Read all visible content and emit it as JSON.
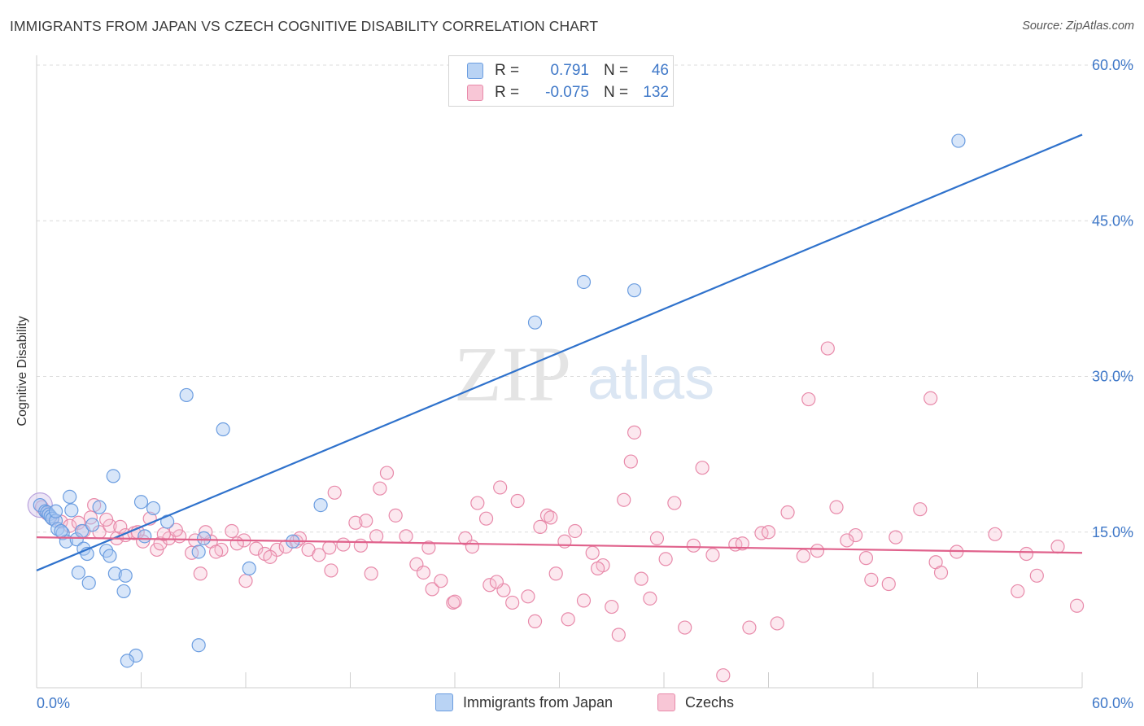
{
  "title": "IMMIGRANTS FROM JAPAN VS CZECH COGNITIVE DISABILITY CORRELATION CHART",
  "source": "Source: ZipAtlas.com",
  "watermark": {
    "zip": "ZIP",
    "atlas": "atlas"
  },
  "legend": {
    "rows": [
      {
        "r_label": "R =",
        "r_value": "0.791",
        "n_label": "N =",
        "n_value": "46",
        "color": "#a9c8f2",
        "border": "#6b9de0"
      },
      {
        "r_label": "R =",
        "r_value": "-0.075",
        "n_label": "N =",
        "n_value": "132",
        "color": "#f7bcd0",
        "border": "#e88aaa"
      }
    ]
  },
  "bottom_legend": [
    {
      "label": "Immigrants from Japan",
      "color": "#b9d3f4",
      "border": "#6b9de0"
    },
    {
      "label": "Czechs",
      "color": "#f8c6d6",
      "border": "#e88aaa"
    }
  ],
  "chart_data": {
    "type": "scatter",
    "title": "IMMIGRANTS FROM JAPAN VS CZECH COGNITIVE DISABILITY CORRELATION CHART",
    "xlabel": "",
    "ylabel": "Cognitive Disability",
    "xlim": [
      0,
      60
    ],
    "ylim": [
      0,
      60
    ],
    "x_tick_labels": [
      "0.0%",
      "60.0%"
    ],
    "y_tick_values": [
      15,
      30,
      45,
      60
    ],
    "y_tick_labels": [
      "15.0%",
      "30.0%",
      "45.0%",
      "60.0%"
    ],
    "grid": true,
    "series": [
      {
        "name": "Immigrants from Japan",
        "color": "#6b9de0",
        "fill": "rgba(168,200,242,0.45)",
        "trend_color": "#2f72cc",
        "trend": {
          "x": [
            0,
            60
          ],
          "y": [
            11.3,
            53.3
          ]
        },
        "points": [
          [
            0.2,
            17.6
          ],
          [
            0.5,
            17.0
          ],
          [
            0.6,
            16.9
          ],
          [
            0.7,
            16.7
          ],
          [
            0.8,
            16.5
          ],
          [
            0.9,
            16.3
          ],
          [
            1.1,
            16.1
          ],
          [
            1.2,
            15.3
          ],
          [
            1.5,
            14.9
          ],
          [
            1.7,
            14.1
          ],
          [
            1.4,
            15.1
          ],
          [
            2.0,
            17.1
          ],
          [
            2.3,
            14.3
          ],
          [
            2.7,
            13.4
          ],
          [
            1.9,
            18.4
          ],
          [
            2.6,
            15.1
          ],
          [
            2.9,
            12.9
          ],
          [
            4.0,
            13.2
          ],
          [
            3.0,
            10.1
          ],
          [
            3.6,
            17.4
          ],
          [
            4.2,
            12.7
          ],
          [
            4.5,
            11.0
          ],
          [
            4.4,
            20.4
          ],
          [
            5.0,
            9.3
          ],
          [
            5.1,
            10.8
          ],
          [
            6.7,
            17.3
          ],
          [
            6.2,
            14.6
          ],
          [
            6.0,
            17.9
          ],
          [
            5.7,
            3.1
          ],
          [
            5.2,
            2.6
          ],
          [
            8.6,
            28.2
          ],
          [
            7.5,
            16.0
          ],
          [
            9.3,
            13.1
          ],
          [
            9.6,
            14.4
          ],
          [
            10.7,
            24.9
          ],
          [
            12.2,
            11.5
          ],
          [
            14.7,
            14.1
          ],
          [
            16.3,
            17.6
          ],
          [
            9.3,
            4.1
          ],
          [
            2.4,
            11.1
          ],
          [
            3.2,
            15.7
          ],
          [
            28.6,
            35.2
          ],
          [
            31.4,
            39.1
          ],
          [
            34.3,
            38.3
          ],
          [
            52.9,
            52.7
          ],
          [
            1.1,
            17.0
          ]
        ]
      },
      {
        "name": "Czechs",
        "color": "#e88aaa",
        "fill": "rgba(247,188,208,0.35)",
        "trend_color": "#e0628c",
        "trend": {
          "x": [
            0,
            60
          ],
          "y": [
            14.5,
            13.0
          ]
        },
        "points": [
          [
            0.3,
            17.4
          ],
          [
            0.6,
            16.8
          ],
          [
            0.9,
            16.3
          ],
          [
            1.4,
            16.0
          ],
          [
            1.9,
            15.6
          ],
          [
            2.4,
            15.9
          ],
          [
            2.7,
            15.1
          ],
          [
            3.1,
            16.4
          ],
          [
            3.6,
            15.0
          ],
          [
            4.2,
            15.6
          ],
          [
            4.6,
            14.4
          ],
          [
            4.8,
            15.5
          ],
          [
            5.1,
            14.7
          ],
          [
            5.6,
            14.9
          ],
          [
            6.1,
            14.1
          ],
          [
            6.9,
            13.3
          ],
          [
            7.1,
            13.9
          ],
          [
            7.6,
            14.4
          ],
          [
            8.2,
            14.6
          ],
          [
            8.9,
            13.0
          ],
          [
            9.4,
            11.0
          ],
          [
            10.0,
            14.1
          ],
          [
            10.6,
            13.3
          ],
          [
            11.2,
            15.1
          ],
          [
            11.9,
            14.2
          ],
          [
            12.6,
            13.4
          ],
          [
            13.1,
            12.9
          ],
          [
            13.8,
            13.3
          ],
          [
            14.3,
            13.6
          ],
          [
            14.9,
            14.1
          ],
          [
            15.6,
            13.3
          ],
          [
            16.2,
            12.8
          ],
          [
            16.9,
            11.3
          ],
          [
            17.6,
            13.8
          ],
          [
            18.3,
            15.9
          ],
          [
            18.6,
            13.7
          ],
          [
            19.2,
            11.0
          ],
          [
            19.7,
            19.2
          ],
          [
            20.1,
            20.7
          ],
          [
            20.6,
            16.6
          ],
          [
            21.2,
            14.6
          ],
          [
            21.8,
            11.9
          ],
          [
            22.2,
            11.1
          ],
          [
            22.7,
            9.5
          ],
          [
            23.2,
            10.3
          ],
          [
            23.9,
            8.2
          ],
          [
            24.6,
            14.4
          ],
          [
            25.3,
            17.8
          ],
          [
            25.8,
            16.3
          ],
          [
            26.6,
            19.3
          ],
          [
            26.0,
            9.9
          ],
          [
            26.8,
            9.4
          ],
          [
            27.3,
            8.2
          ],
          [
            27.6,
            18.0
          ],
          [
            28.2,
            8.8
          ],
          [
            28.6,
            6.4
          ],
          [
            28.9,
            15.5
          ],
          [
            29.3,
            16.6
          ],
          [
            29.8,
            11.0
          ],
          [
            30.5,
            6.6
          ],
          [
            30.9,
            15.1
          ],
          [
            31.4,
            8.4
          ],
          [
            31.9,
            13.0
          ],
          [
            32.5,
            11.8
          ],
          [
            33.0,
            7.8
          ],
          [
            33.4,
            5.1
          ],
          [
            34.3,
            24.6
          ],
          [
            34.1,
            21.8
          ],
          [
            34.7,
            10.5
          ],
          [
            35.2,
            8.6
          ],
          [
            36.6,
            17.8
          ],
          [
            37.2,
            5.8
          ],
          [
            37.7,
            13.7
          ],
          [
            38.2,
            21.2
          ],
          [
            39.4,
            1.2
          ],
          [
            40.1,
            13.8
          ],
          [
            40.9,
            5.8
          ],
          [
            41.6,
            14.9
          ],
          [
            42.5,
            6.2
          ],
          [
            43.1,
            16.9
          ],
          [
            44.3,
            27.8
          ],
          [
            44.8,
            13.2
          ],
          [
            45.4,
            32.7
          ],
          [
            45.9,
            17.4
          ],
          [
            47.0,
            14.7
          ],
          [
            47.6,
            12.5
          ],
          [
            47.9,
            10.4
          ],
          [
            48.9,
            10.0
          ],
          [
            50.7,
            17.2
          ],
          [
            51.3,
            27.9
          ],
          [
            51.6,
            12.1
          ],
          [
            51.9,
            11.1
          ],
          [
            55.0,
            14.8
          ],
          [
            56.3,
            9.3
          ],
          [
            57.4,
            10.8
          ],
          [
            58.6,
            13.6
          ],
          [
            59.7,
            7.9
          ],
          [
            8.0,
            15.2
          ],
          [
            9.1,
            14.2
          ],
          [
            10.3,
            13.1
          ],
          [
            12.0,
            10.3
          ],
          [
            13.4,
            12.6
          ],
          [
            15.1,
            14.4
          ],
          [
            16.8,
            13.5
          ],
          [
            17.1,
            18.8
          ],
          [
            18.9,
            16.1
          ],
          [
            19.5,
            14.6
          ],
          [
            22.5,
            13.5
          ],
          [
            24.0,
            8.3
          ],
          [
            25.0,
            13.6
          ],
          [
            26.4,
            10.2
          ],
          [
            29.5,
            16.4
          ],
          [
            30.3,
            14.1
          ],
          [
            32.2,
            11.5
          ],
          [
            33.7,
            18.1
          ],
          [
            35.6,
            14.4
          ],
          [
            36.1,
            12.4
          ],
          [
            38.8,
            12.8
          ],
          [
            40.5,
            13.9
          ],
          [
            42.0,
            15.0
          ],
          [
            44.0,
            12.7
          ],
          [
            46.5,
            14.2
          ],
          [
            49.3,
            14.5
          ],
          [
            52.8,
            13.1
          ],
          [
            56.8,
            12.9
          ],
          [
            3.3,
            17.6
          ],
          [
            4.0,
            16.2
          ],
          [
            5.8,
            15.0
          ],
          [
            6.5,
            16.3
          ],
          [
            7.3,
            14.8
          ],
          [
            9.7,
            15.0
          ],
          [
            11.5,
            13.9
          ]
        ]
      }
    ]
  }
}
